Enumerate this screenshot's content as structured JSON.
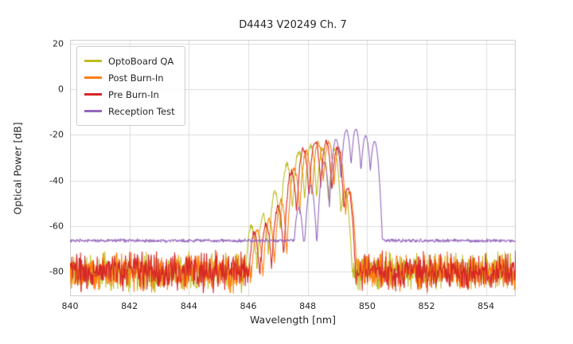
{
  "chart_data": {
    "type": "line",
    "title": "D4443 V20249 Ch. 7",
    "xlabel": "Wavelength [nm]",
    "ylabel": "Optical Power [dB]",
    "xlim": [
      840,
      855
    ],
    "ylim": [
      -90.8,
      21.7
    ],
    "xticks": [
      840,
      842,
      844,
      846,
      848,
      850,
      852,
      854
    ],
    "yticks": [
      20,
      0,
      -20,
      -40,
      -60,
      -80
    ],
    "grid": true,
    "grid_color": "#dcdcdc",
    "spine_color": "#cccccc",
    "legend_position": "upper left",
    "series": [
      {
        "name": "OptoBoard QA",
        "color": "#bcbd22",
        "seed": 11,
        "jitter": 1.2,
        "mode_width": 0.042,
        "noise_floor": {
          "mean": -80,
          "spread": 9.5
        },
        "modes": [
          [
            846.1,
            -60
          ],
          [
            846.5,
            -55
          ],
          [
            846.9,
            -45
          ],
          [
            847.3,
            -33
          ],
          [
            847.7,
            -27.5
          ],
          [
            848.1,
            -25
          ],
          [
            848.5,
            -26
          ],
          [
            848.9,
            -27
          ],
          [
            849.25,
            -45
          ]
        ]
      },
      {
        "name": "Post Burn-In",
        "color": "#ff7f0e",
        "seed": 22,
        "jitter": 1.2,
        "mode_width": 0.042,
        "noise_floor": {
          "mean": -80,
          "spread": 9.5
        },
        "modes": [
          [
            846.3,
            -62
          ],
          [
            846.7,
            -57
          ],
          [
            847.1,
            -49
          ],
          [
            847.55,
            -35
          ],
          [
            847.95,
            -27
          ],
          [
            848.35,
            -23.5
          ],
          [
            848.7,
            -23
          ],
          [
            849.05,
            -26
          ],
          [
            849.4,
            -45
          ]
        ]
      },
      {
        "name": "Pre Burn-In",
        "color": "#d62728",
        "seed": 33,
        "jitter": 1.2,
        "mode_width": 0.042,
        "noise_floor": {
          "mean": -80,
          "spread": 9.5
        },
        "modes": [
          [
            846.2,
            -63
          ],
          [
            846.6,
            -59
          ],
          [
            847.0,
            -52
          ],
          [
            847.45,
            -36
          ],
          [
            847.85,
            -26
          ],
          [
            848.25,
            -22.8
          ],
          [
            848.62,
            -23.2
          ],
          [
            849.0,
            -25.5
          ],
          [
            849.35,
            -43
          ]
        ]
      },
      {
        "name": "Reception Test",
        "color": "#9467bd",
        "seed": 44,
        "jitter": 0.3,
        "mode_width": 0.04,
        "noise_floor": {
          "mean": -66.4,
          "spread": 0.9
        },
        "modes": [
          [
            847.7,
            -52
          ],
          [
            848.1,
            -42
          ],
          [
            848.55,
            -32
          ],
          [
            848.95,
            -22
          ],
          [
            849.3,
            -17.8
          ],
          [
            849.62,
            -17.5
          ],
          [
            849.95,
            -20.5
          ],
          [
            850.25,
            -23
          ]
        ]
      }
    ]
  }
}
